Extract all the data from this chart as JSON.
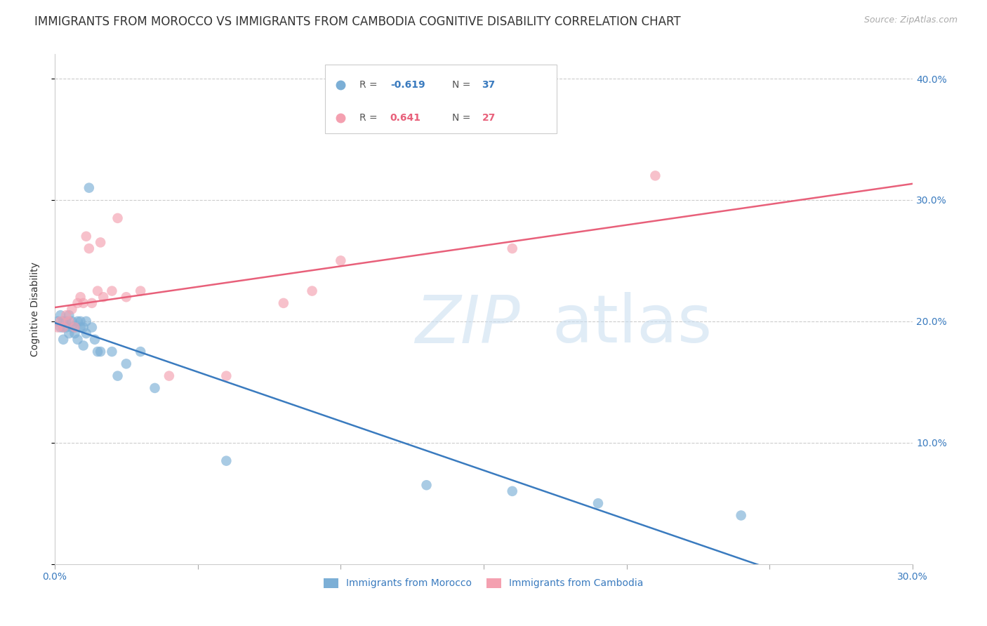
{
  "title": "IMMIGRANTS FROM MOROCCO VS IMMIGRANTS FROM CAMBODIA COGNITIVE DISABILITY CORRELATION CHART",
  "source": "Source: ZipAtlas.com",
  "ylabel": "Cognitive Disability",
  "xlim": [
    0.0,
    0.3
  ],
  "ylim": [
    0.0,
    0.42
  ],
  "xticks": [
    0.0,
    0.05,
    0.1,
    0.15,
    0.2,
    0.25,
    0.3
  ],
  "xtick_labels": [
    "0.0%",
    "",
    "",
    "",
    "",
    "",
    "30.0%"
  ],
  "yticks": [
    0.0,
    0.1,
    0.2,
    0.3,
    0.4
  ],
  "ytick_labels_right": [
    "",
    "10.0%",
    "20.0%",
    "30.0%",
    "40.0%"
  ],
  "morocco_color": "#7cafd6",
  "cambodia_color": "#f4a0b0",
  "morocco_line_color": "#3a7bbf",
  "cambodia_line_color": "#e8607a",
  "legend_R_morocco": "-0.619",
  "legend_N_morocco": "37",
  "legend_R_cambodia": "0.641",
  "legend_N_cambodia": "27",
  "legend_label_morocco": "Immigrants from Morocco",
  "legend_label_cambodia": "Immigrants from Cambodia",
  "watermark_zip": "ZIP",
  "watermark_atlas": "atlas",
  "morocco_x": [
    0.001,
    0.002,
    0.002,
    0.003,
    0.003,
    0.003,
    0.004,
    0.004,
    0.005,
    0.005,
    0.006,
    0.006,
    0.007,
    0.007,
    0.008,
    0.008,
    0.009,
    0.009,
    0.01,
    0.01,
    0.011,
    0.011,
    0.012,
    0.013,
    0.014,
    0.015,
    0.016,
    0.02,
    0.022,
    0.025,
    0.03,
    0.035,
    0.06,
    0.13,
    0.16,
    0.19,
    0.24
  ],
  "morocco_y": [
    0.2,
    0.195,
    0.205,
    0.2,
    0.195,
    0.185,
    0.2,
    0.195,
    0.205,
    0.19,
    0.2,
    0.195,
    0.195,
    0.19,
    0.2,
    0.185,
    0.195,
    0.2,
    0.195,
    0.18,
    0.2,
    0.19,
    0.31,
    0.195,
    0.185,
    0.175,
    0.175,
    0.175,
    0.155,
    0.165,
    0.175,
    0.145,
    0.085,
    0.065,
    0.06,
    0.05,
    0.04
  ],
  "cambodia_x": [
    0.001,
    0.002,
    0.003,
    0.004,
    0.005,
    0.006,
    0.007,
    0.008,
    0.009,
    0.01,
    0.011,
    0.012,
    0.013,
    0.015,
    0.016,
    0.017,
    0.02,
    0.022,
    0.025,
    0.03,
    0.04,
    0.06,
    0.08,
    0.09,
    0.1,
    0.16,
    0.21
  ],
  "cambodia_y": [
    0.195,
    0.2,
    0.195,
    0.205,
    0.2,
    0.21,
    0.195,
    0.215,
    0.22,
    0.215,
    0.27,
    0.26,
    0.215,
    0.225,
    0.265,
    0.22,
    0.225,
    0.285,
    0.22,
    0.225,
    0.155,
    0.155,
    0.215,
    0.225,
    0.25,
    0.26,
    0.32
  ],
  "background_color": "#ffffff",
  "grid_color": "#cccccc",
  "axis_label_color": "#3a7bbf",
  "title_color": "#333333",
  "title_fontsize": 12,
  "axis_fontsize": 10,
  "right_tick_color": "#3a7bbf"
}
